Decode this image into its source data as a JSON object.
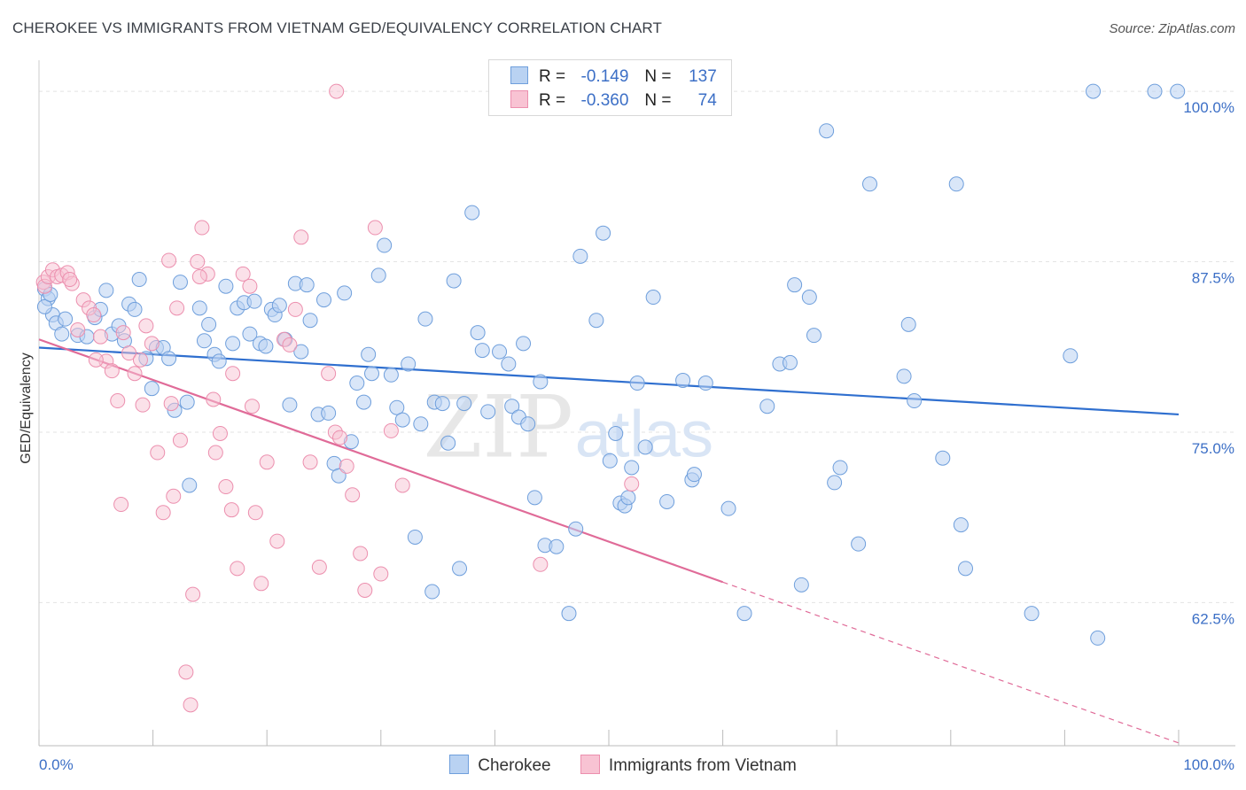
{
  "title": "CHEROKEE VS IMMIGRANTS FROM VIETNAM GED/EQUIVALENCY CORRELATION CHART",
  "source": "Source: ZipAtlas.com",
  "watermark": {
    "zip": "ZIP",
    "atlas": "atlas"
  },
  "legend": {
    "rows": [
      {
        "r_label": "R =",
        "r_value": "-0.149",
        "n_label": "N =",
        "n_value": "137"
      },
      {
        "r_label": "R =",
        "r_value": "-0.360",
        "n_label": "N =",
        "n_value": "74"
      }
    ]
  },
  "colors": {
    "cherokee_fill": "#b9d2f2",
    "cherokee_stroke": "#6f9fdc",
    "cherokee_line": "#2f6fcf",
    "vietnam_fill": "#f8c3d3",
    "vietnam_stroke": "#ec8fae",
    "vietnam_line": "#e06b98",
    "tick_label": "#3c6fc6",
    "grid": "#e3e3e3"
  },
  "chart_data": {
    "type": "scatter",
    "title": "CHEROKEE VS IMMIGRANTS FROM VIETNAM GED/EQUIVALENCY CORRELATION CHART",
    "xlabel": "",
    "ylabel": "GED/Equivalency",
    "xlim": [
      0,
      100
    ],
    "ylim": [
      52.0,
      101.5
    ],
    "x_tick_labels": [
      "0.0%",
      "100.0%"
    ],
    "y_ticks": [
      62.5,
      75.0,
      87.5,
      100.0
    ],
    "y_tick_labels": [
      "62.5%",
      "75.0%",
      "87.5%",
      "100.0%"
    ],
    "grid": true,
    "legend_position": "top-center",
    "series": [
      {
        "name": "Cherokee",
        "trend": {
          "x": [
            0,
            100
          ],
          "y": [
            81.2,
            76.3
          ]
        },
        "points": [
          [
            0.5,
            85.5
          ],
          [
            0.8,
            84.8
          ],
          [
            1.2,
            83.6
          ],
          [
            1.5,
            83.0
          ],
          [
            2.0,
            82.2
          ],
          [
            2.3,
            83.3
          ],
          [
            3.4,
            82.1
          ],
          [
            4.2,
            82.0
          ],
          [
            4.9,
            83.4
          ],
          [
            5.4,
            84.0
          ],
          [
            5.9,
            85.4
          ],
          [
            6.4,
            82.2
          ],
          [
            7.0,
            82.8
          ],
          [
            7.5,
            81.7
          ],
          [
            7.9,
            84.4
          ],
          [
            8.4,
            84.0
          ],
          [
            8.8,
            86.2
          ],
          [
            9.4,
            80.4
          ],
          [
            9.9,
            78.2
          ],
          [
            10.3,
            81.2
          ],
          [
            10.9,
            81.2
          ],
          [
            11.4,
            80.4
          ],
          [
            11.9,
            76.6
          ],
          [
            12.4,
            86.0
          ],
          [
            13.0,
            77.2
          ],
          [
            13.2,
            71.1
          ],
          [
            14.1,
            84.1
          ],
          [
            14.5,
            81.7
          ],
          [
            14.9,
            82.9
          ],
          [
            15.4,
            80.7
          ],
          [
            15.8,
            80.2
          ],
          [
            16.4,
            85.7
          ],
          [
            17.0,
            81.5
          ],
          [
            17.4,
            84.1
          ],
          [
            18.0,
            84.5
          ],
          [
            18.5,
            82.2
          ],
          [
            18.9,
            84.6
          ],
          [
            19.4,
            81.5
          ],
          [
            19.9,
            81.3
          ],
          [
            20.4,
            84.0
          ],
          [
            20.7,
            83.6
          ],
          [
            21.1,
            84.3
          ],
          [
            21.6,
            81.8
          ],
          [
            22.0,
            77.0
          ],
          [
            22.5,
            85.9
          ],
          [
            23.0,
            80.9
          ],
          [
            23.5,
            85.8
          ],
          [
            23.8,
            83.2
          ],
          [
            24.5,
            76.3
          ],
          [
            25.0,
            84.7
          ],
          [
            25.4,
            76.4
          ],
          [
            25.9,
            72.7
          ],
          [
            26.3,
            71.8
          ],
          [
            26.8,
            85.2
          ],
          [
            27.4,
            74.3
          ],
          [
            27.9,
            78.6
          ],
          [
            28.5,
            77.2
          ],
          [
            28.9,
            80.7
          ],
          [
            29.2,
            79.3
          ],
          [
            29.8,
            86.5
          ],
          [
            30.3,
            88.7
          ],
          [
            30.9,
            79.2
          ],
          [
            31.4,
            76.8
          ],
          [
            31.9,
            75.9
          ],
          [
            32.4,
            80.0
          ],
          [
            33.0,
            67.3
          ],
          [
            33.5,
            75.6
          ],
          [
            33.9,
            83.3
          ],
          [
            34.5,
            63.3
          ],
          [
            34.7,
            77.2
          ],
          [
            35.4,
            77.1
          ],
          [
            35.9,
            74.2
          ],
          [
            36.4,
            86.1
          ],
          [
            36.9,
            65.0
          ],
          [
            37.3,
            77.1
          ],
          [
            38.0,
            91.1
          ],
          [
            38.5,
            82.3
          ],
          [
            38.9,
            81.0
          ],
          [
            39.4,
            76.5
          ],
          [
            40.4,
            80.9
          ],
          [
            41.2,
            80.0
          ],
          [
            41.5,
            76.9
          ],
          [
            42.1,
            76.1
          ],
          [
            42.5,
            81.5
          ],
          [
            42.9,
            75.6
          ],
          [
            43.5,
            70.2
          ],
          [
            44.0,
            78.7
          ],
          [
            44.4,
            66.7
          ],
          [
            45.4,
            66.6
          ],
          [
            46.5,
            61.7
          ],
          [
            47.1,
            67.9
          ],
          [
            47.5,
            87.9
          ],
          [
            48.9,
            83.2
          ],
          [
            49.5,
            89.6
          ],
          [
            50.1,
            72.9
          ],
          [
            50.6,
            74.9
          ],
          [
            51.0,
            69.8
          ],
          [
            51.4,
            69.6
          ],
          [
            51.7,
            70.2
          ],
          [
            52.0,
            72.4
          ],
          [
            52.5,
            78.6
          ],
          [
            53.2,
            73.9
          ],
          [
            53.9,
            84.9
          ],
          [
            55.1,
            69.9
          ],
          [
            56.5,
            78.8
          ],
          [
            57.3,
            71.5
          ],
          [
            57.5,
            71.9
          ],
          [
            58.5,
            78.6
          ],
          [
            60.5,
            69.4
          ],
          [
            61.9,
            61.7
          ],
          [
            63.9,
            76.9
          ],
          [
            65.0,
            80.0
          ],
          [
            65.9,
            80.1
          ],
          [
            66.3,
            85.8
          ],
          [
            66.9,
            63.8
          ],
          [
            67.6,
            84.9
          ],
          [
            68.0,
            82.1
          ],
          [
            69.1,
            97.1
          ],
          [
            69.8,
            71.3
          ],
          [
            70.3,
            72.4
          ],
          [
            71.9,
            66.8
          ],
          [
            72.9,
            93.2
          ],
          [
            75.9,
            79.1
          ],
          [
            76.3,
            82.9
          ],
          [
            76.8,
            77.3
          ],
          [
            79.3,
            73.1
          ],
          [
            80.5,
            93.2
          ],
          [
            80.9,
            68.2
          ],
          [
            81.3,
            65.0
          ],
          [
            87.1,
            61.7
          ],
          [
            90.5,
            80.6
          ],
          [
            92.9,
            59.9
          ],
          [
            92.5,
            100.0
          ],
          [
            97.9,
            100.0
          ],
          [
            99.9,
            100.0
          ],
          [
            0.5,
            84.2
          ],
          [
            1.0,
            85.1
          ]
        ]
      },
      {
        "name": "Immigrants from Vietnam",
        "trend": {
          "x": [
            0,
            60
          ],
          "y": [
            81.8,
            64.0
          ]
        },
        "trend_dashed": {
          "x": [
            60,
            100
          ],
          "y": [
            64.0,
            52.2
          ]
        },
        "points": [
          [
            0.4,
            86.0
          ],
          [
            0.5,
            85.7
          ],
          [
            0.8,
            86.4
          ],
          [
            1.2,
            86.9
          ],
          [
            1.6,
            86.4
          ],
          [
            2.0,
            86.5
          ],
          [
            2.5,
            86.7
          ],
          [
            2.9,
            85.9
          ],
          [
            3.4,
            82.5
          ],
          [
            3.9,
            84.7
          ],
          [
            4.4,
            84.1
          ],
          [
            4.8,
            83.6
          ],
          [
            5.4,
            82.0
          ],
          [
            5.9,
            80.2
          ],
          [
            6.4,
            79.5
          ],
          [
            6.9,
            77.3
          ],
          [
            7.4,
            82.3
          ],
          [
            7.9,
            80.8
          ],
          [
            8.4,
            79.3
          ],
          [
            8.9,
            80.3
          ],
          [
            9.4,
            82.8
          ],
          [
            9.9,
            81.5
          ],
          [
            10.4,
            73.5
          ],
          [
            10.9,
            69.1
          ],
          [
            11.4,
            87.6
          ],
          [
            11.8,
            70.3
          ],
          [
            12.4,
            74.4
          ],
          [
            12.9,
            57.4
          ],
          [
            13.3,
            55.0
          ],
          [
            13.9,
            87.5
          ],
          [
            14.3,
            90.0
          ],
          [
            14.8,
            86.6
          ],
          [
            15.3,
            77.4
          ],
          [
            15.9,
            74.9
          ],
          [
            16.4,
            71.0
          ],
          [
            16.9,
            69.3
          ],
          [
            17.4,
            65.0
          ],
          [
            17.9,
            86.6
          ],
          [
            18.5,
            85.7
          ],
          [
            19.0,
            69.1
          ],
          [
            19.5,
            63.9
          ],
          [
            20.0,
            72.8
          ],
          [
            20.9,
            67.0
          ],
          [
            21.5,
            81.8
          ],
          [
            22.0,
            81.4
          ],
          [
            22.5,
            84.0
          ],
          [
            23.0,
            89.3
          ],
          [
            23.8,
            72.8
          ],
          [
            24.6,
            65.1
          ],
          [
            25.4,
            79.3
          ],
          [
            26.0,
            75.0
          ],
          [
            26.4,
            74.6
          ],
          [
            27.0,
            72.5
          ],
          [
            27.5,
            70.4
          ],
          [
            28.2,
            66.1
          ],
          [
            28.6,
            63.4
          ],
          [
            29.5,
            90.0
          ],
          [
            30.0,
            64.6
          ],
          [
            30.9,
            75.1
          ],
          [
            31.9,
            71.1
          ],
          [
            26.1,
            100.0
          ],
          [
            44.0,
            65.3
          ],
          [
            52.0,
            71.2
          ],
          [
            9.1,
            77.0
          ],
          [
            11.6,
            77.1
          ],
          [
            12.1,
            84.1
          ],
          [
            13.5,
            63.1
          ],
          [
            15.5,
            73.5
          ],
          [
            2.7,
            86.2
          ],
          [
            17.0,
            79.3
          ],
          [
            18.7,
            76.9
          ],
          [
            14.1,
            86.4
          ],
          [
            5.0,
            80.3
          ],
          [
            7.2,
            69.7
          ]
        ]
      }
    ]
  },
  "bottom_legend": [
    "Cherokee",
    "Immigrants from Vietnam"
  ]
}
